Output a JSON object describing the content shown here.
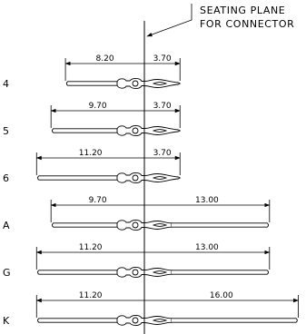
{
  "callout": {
    "line1": "SEATING PLANE",
    "line2": "FOR CONNECTOR"
  },
  "rows": [
    {
      "label": "4",
      "left_dim": "8.20",
      "right_dim": "3.70",
      "left_mm": 8.2,
      "right_mm": 3.7
    },
    {
      "label": "5",
      "left_dim": "9.70",
      "right_dim": "3.70",
      "left_mm": 9.7,
      "right_mm": 3.7
    },
    {
      "label": "6",
      "left_dim": "11.20",
      "right_dim": "3.70",
      "left_mm": 11.2,
      "right_mm": 3.7
    },
    {
      "label": "A",
      "left_dim": "9.70",
      "right_dim": "13.00",
      "left_mm": 9.7,
      "right_mm": 13.0
    },
    {
      "label": "G",
      "left_dim": "11.20",
      "right_dim": "13.00",
      "left_mm": 11.2,
      "right_mm": 13.0
    },
    {
      "label": "K",
      "left_dim": "11.20",
      "right_dim": "16.00",
      "left_mm": 11.2,
      "right_mm": 16.0
    }
  ]
}
